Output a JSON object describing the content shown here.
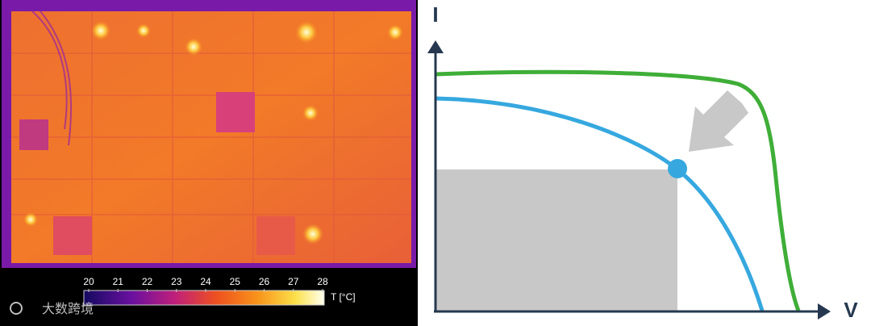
{
  "thermal_image": {
    "colorbar": {
      "ticks": [
        20,
        21,
        22,
        23,
        24,
        25,
        26,
        27,
        28
      ],
      "unit_label": "T [°C]"
    }
  },
  "iv_diagram": {
    "y_axis_label": "I",
    "x_axis_label": "V"
  },
  "watermark": "大数跨境"
}
